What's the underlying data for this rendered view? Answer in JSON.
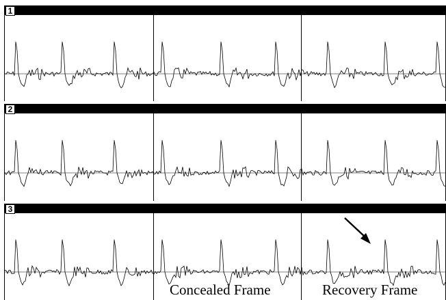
{
  "panels": [
    {
      "label": "1"
    },
    {
      "label": "2"
    },
    {
      "label": "3"
    }
  ],
  "captions": {
    "concealed": "Concealed Frame",
    "recovery": "Recovery Frame"
  },
  "colors": {
    "trace": "#000000",
    "bar": "#000000",
    "background": "#ffffff"
  },
  "icons": {
    "pointer": "arrow-icon"
  }
}
